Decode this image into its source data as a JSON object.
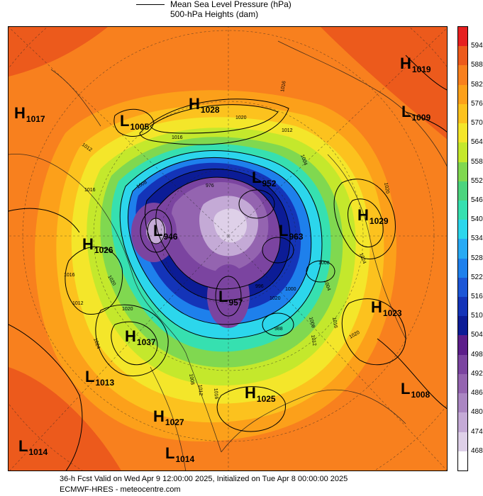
{
  "legend": {
    "line_label": "Mean Sea Level Pressure (hPa)",
    "fill_label": "500-hPa Heights (dam)"
  },
  "pressure_centers": [
    {
      "type": "H",
      "value": "1019"
    },
    {
      "type": "H",
      "value": "1017"
    },
    {
      "type": "L",
      "value": "1005"
    },
    {
      "type": "H",
      "value": "1028"
    },
    {
      "type": "L",
      "value": "1009"
    },
    {
      "type": "L",
      "value": "952"
    },
    {
      "type": "H",
      "value": "1029"
    },
    {
      "type": "L",
      "value": "946"
    },
    {
      "type": "L",
      "value": "963"
    },
    {
      "type": "H",
      "value": "1026"
    },
    {
      "type": "L",
      "value": "957"
    },
    {
      "type": "H",
      "value": "1023"
    },
    {
      "type": "H",
      "value": "1037"
    },
    {
      "type": "L",
      "value": "1013"
    },
    {
      "type": "H",
      "value": "1025"
    },
    {
      "type": "L",
      "value": "1008"
    },
    {
      "type": "H",
      "value": "1027"
    },
    {
      "type": "L",
      "value": "1014"
    },
    {
      "type": "L",
      "value": "1014"
    }
  ],
  "isobar_labels": [
    "1016",
    "1012",
    "1016",
    "1020",
    "1012",
    "1004",
    "1016",
    "1008",
    "1024",
    "1016",
    "1012",
    "1020",
    "1020",
    "1024",
    "1008",
    "1012",
    "1016",
    "1020",
    "1012",
    "1008",
    "1000",
    "988",
    "996",
    "976",
    "1004",
    "1008",
    "1016",
    "1020",
    "1012"
  ],
  "colorbar": {
    "colors": [
      "#ffffff",
      "#ded0e8",
      "#c4aad6",
      "#aa86c2",
      "#9464b0",
      "#7b44a0",
      "#5c1e8a",
      "#0c1c96",
      "#1434b8",
      "#1c56d6",
      "#1e80ec",
      "#28aaf4",
      "#2cd6ec",
      "#36e0b0",
      "#4cd47e",
      "#80d850",
      "#c4e82c",
      "#f4e62a",
      "#fcc21e",
      "#fca01a",
      "#f8801e",
      "#ec5a1c",
      "#e62020"
    ],
    "labels": [
      "594",
      "588",
      "582",
      "576",
      "570",
      "564",
      "558",
      "552",
      "546",
      "540",
      "534",
      "528",
      "522",
      "516",
      "510",
      "504",
      "498",
      "492",
      "486",
      "480",
      "474",
      "468"
    ]
  },
  "footer": {
    "line1": "36-h Fcst Valid on Wed Apr  9 12:00:00 2025, Initialized on Tue Apr  8 00:00:00 2025",
    "line2": "ECMWF-HRES  - meteocentre.com"
  }
}
